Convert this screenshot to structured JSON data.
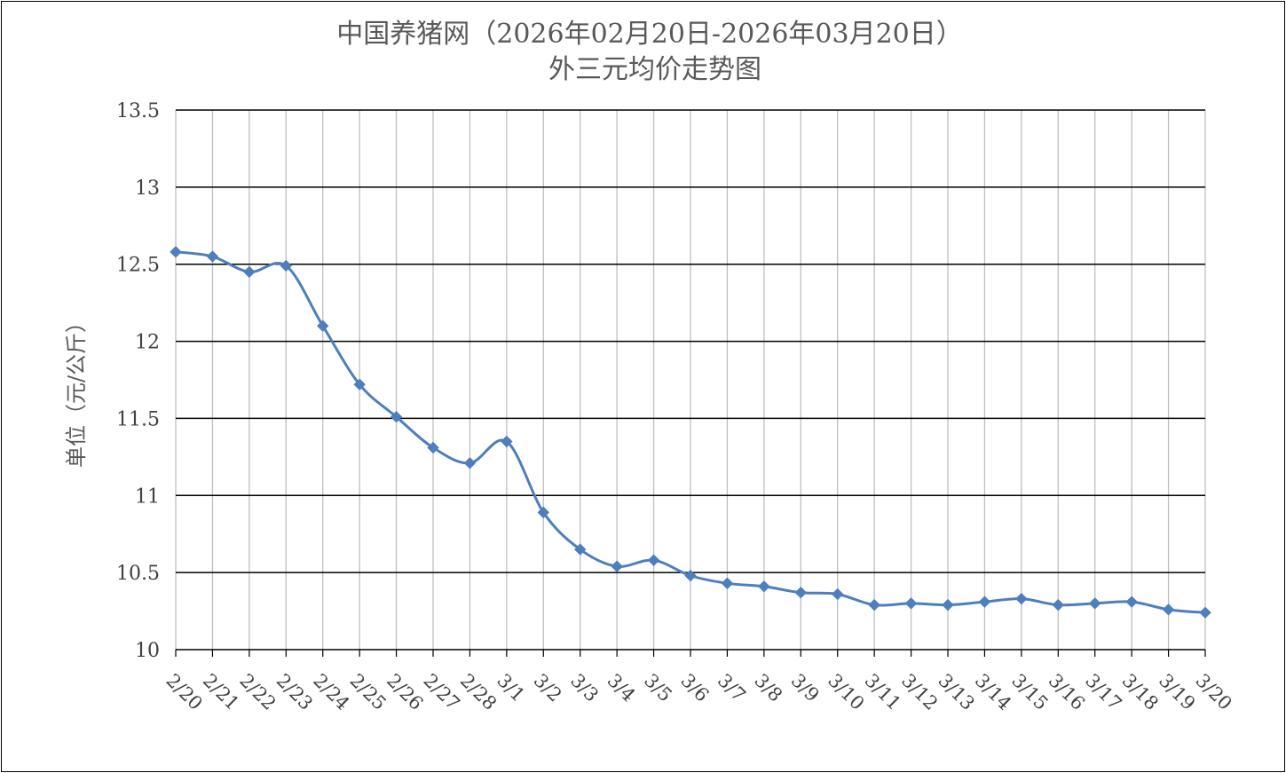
{
  "colors": {
    "series": "#4f7ebc",
    "hgrid": "#000000",
    "vgrid": "#bfbfbf",
    "title": "#595959",
    "ticks": "#404040"
  },
  "chart_data": {
    "type": "line",
    "title": "中国养猪网（2026年02月20日-2026年03月20日）",
    "subtitle": "外三元均价走势图",
    "xlabel": "",
    "ylabel": "单位（元/公斤）",
    "ylim": [
      10,
      13.5
    ],
    "yticks": [
      10,
      10.5,
      11,
      11.5,
      12,
      12.5,
      13,
      13.5
    ],
    "ytick_labels": [
      "10",
      "10.5",
      "11",
      "11.5",
      "12",
      "12.5",
      "13",
      "13.5"
    ],
    "grid": "on",
    "legend": "none",
    "marker": "diamond",
    "smooth": true,
    "categories": [
      "2/20",
      "2/21",
      "2/22",
      "2/23",
      "2/24",
      "2/25",
      "2/26",
      "2/27",
      "2/28",
      "3/1",
      "3/2",
      "3/3",
      "3/4",
      "3/5",
      "3/6",
      "3/7",
      "3/8",
      "3/9",
      "3/10",
      "3/11",
      "3/12",
      "3/13",
      "3/14",
      "3/15",
      "3/16",
      "3/17",
      "3/18",
      "3/19",
      "3/20"
    ],
    "series": [
      {
        "values": [
          12.58,
          12.55,
          12.45,
          12.49,
          12.1,
          11.72,
          11.51,
          11.31,
          11.21,
          11.35,
          10.89,
          10.65,
          10.54,
          10.58,
          10.48,
          10.43,
          10.41,
          10.37,
          10.36,
          10.29,
          10.3,
          10.29,
          10.31,
          10.33,
          10.29,
          10.3,
          10.31,
          10.26,
          10.24
        ]
      }
    ]
  }
}
